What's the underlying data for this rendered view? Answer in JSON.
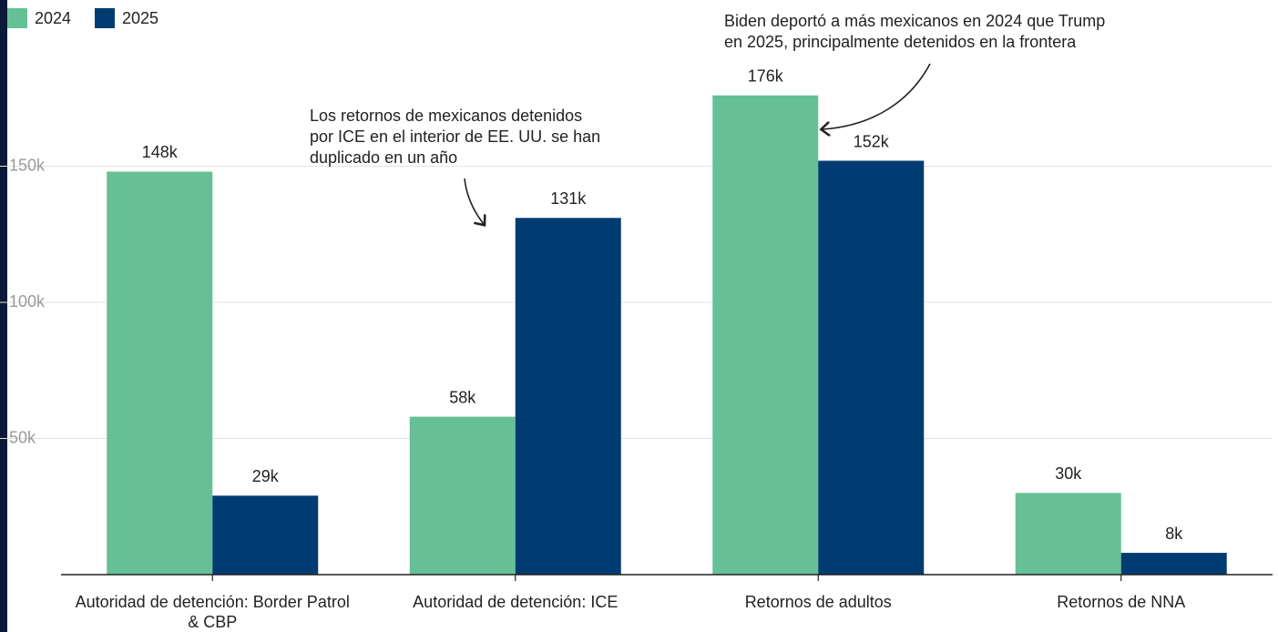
{
  "chart_data": {
    "type": "bar",
    "categories": [
      "Autoridad de detención: Border Patrol & CBP",
      "Autoridad de detención: ICE",
      "Retornos de adultos",
      "Retornos de NNA"
    ],
    "series": [
      {
        "name": "2024",
        "color": "#66c095",
        "values": [
          148000,
          58000,
          176000,
          30000
        ],
        "value_labels": [
          "148k",
          "58k",
          "176k",
          "30k"
        ]
      },
      {
        "name": "2025",
        "color": "#003c71",
        "values": [
          29000,
          131000,
          152000,
          8000
        ],
        "value_labels": [
          "29k",
          "131k",
          "152k",
          "8k"
        ]
      }
    ],
    "ylim": [
      0,
      200000
    ],
    "yticks": [
      {
        "value": 50000,
        "label": "50k"
      },
      {
        "value": 100000,
        "label": "100k"
      },
      {
        "value": 150000,
        "label": "150k"
      }
    ],
    "grid": true,
    "legend": "top-left",
    "annotations": [
      {
        "lines": [
          "Los retornos de mexicanos detenidos",
          "por ICE en el interior de EE. UU. se han",
          "duplicado en un año"
        ]
      },
      {
        "lines": [
          "Biden deportó a más mexicanos en 2024 que Trump",
          "en 2025, principalmente detenidos en la frontera"
        ]
      }
    ]
  }
}
